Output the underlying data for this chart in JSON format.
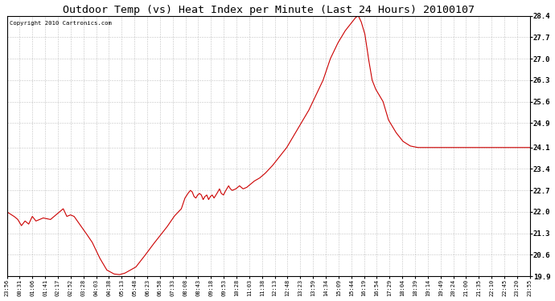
{
  "title": "Outdoor Temp (vs) Heat Index per Minute (Last 24 Hours) 20100107",
  "copyright": "Copyright 2010 Cartronics.com",
  "line_color": "#cc0000",
  "bg_color": "#ffffff",
  "grid_color": "#aaaaaa",
  "ylim": [
    19.9,
    28.4
  ],
  "yticks": [
    19.9,
    20.6,
    21.3,
    22.0,
    22.7,
    23.4,
    24.1,
    24.9,
    25.6,
    26.3,
    27.0,
    27.7,
    28.4
  ],
  "xtick_labels": [
    "23:56",
    "00:31",
    "01:06",
    "01:41",
    "02:17",
    "02:52",
    "03:28",
    "04:03",
    "04:38",
    "05:13",
    "05:48",
    "06:23",
    "06:58",
    "07:33",
    "08:08",
    "08:43",
    "09:18",
    "09:53",
    "10:28",
    "11:03",
    "11:38",
    "12:13",
    "12:48",
    "13:23",
    "13:59",
    "14:34",
    "15:09",
    "15:44",
    "16:19",
    "16:54",
    "17:29",
    "18:04",
    "18:39",
    "19:14",
    "19:49",
    "20:24",
    "21:00",
    "21:35",
    "22:10",
    "22:45",
    "23:20",
    "23:55"
  ],
  "keypoints": [
    [
      0,
      22.0
    ],
    [
      20,
      21.85
    ],
    [
      30,
      21.75
    ],
    [
      40,
      21.55
    ],
    [
      50,
      21.7
    ],
    [
      60,
      21.6
    ],
    [
      70,
      21.85
    ],
    [
      80,
      21.7
    ],
    [
      100,
      21.8
    ],
    [
      120,
      21.75
    ],
    [
      140,
      21.95
    ],
    [
      155,
      22.1
    ],
    [
      165,
      21.85
    ],
    [
      175,
      21.9
    ],
    [
      185,
      21.85
    ],
    [
      200,
      21.6
    ],
    [
      215,
      21.35
    ],
    [
      235,
      21.0
    ],
    [
      255,
      20.5
    ],
    [
      275,
      20.1
    ],
    [
      295,
      19.97
    ],
    [
      310,
      19.95
    ],
    [
      325,
      20.0
    ],
    [
      340,
      20.1
    ],
    [
      355,
      20.2
    ],
    [
      375,
      20.5
    ],
    [
      400,
      20.9
    ],
    [
      420,
      21.2
    ],
    [
      440,
      21.5
    ],
    [
      460,
      21.85
    ],
    [
      480,
      22.1
    ],
    [
      490,
      22.45
    ],
    [
      498,
      22.6
    ],
    [
      505,
      22.7
    ],
    [
      510,
      22.65
    ],
    [
      515,
      22.5
    ],
    [
      520,
      22.45
    ],
    [
      525,
      22.55
    ],
    [
      530,
      22.6
    ],
    [
      535,
      22.55
    ],
    [
      540,
      22.4
    ],
    [
      545,
      22.5
    ],
    [
      550,
      22.55
    ],
    [
      555,
      22.4
    ],
    [
      560,
      22.5
    ],
    [
      565,
      22.55
    ],
    [
      570,
      22.45
    ],
    [
      578,
      22.6
    ],
    [
      585,
      22.75
    ],
    [
      590,
      22.6
    ],
    [
      596,
      22.55
    ],
    [
      600,
      22.65
    ],
    [
      605,
      22.75
    ],
    [
      610,
      22.85
    ],
    [
      615,
      22.75
    ],
    [
      620,
      22.7
    ],
    [
      630,
      22.75
    ],
    [
      640,
      22.85
    ],
    [
      650,
      22.75
    ],
    [
      660,
      22.8
    ],
    [
      670,
      22.9
    ],
    [
      680,
      23.0
    ],
    [
      695,
      23.1
    ],
    [
      710,
      23.25
    ],
    [
      730,
      23.5
    ],
    [
      750,
      23.8
    ],
    [
      770,
      24.1
    ],
    [
      790,
      24.5
    ],
    [
      810,
      24.9
    ],
    [
      830,
      25.3
    ],
    [
      850,
      25.8
    ],
    [
      870,
      26.3
    ],
    [
      890,
      27.0
    ],
    [
      910,
      27.5
    ],
    [
      930,
      27.9
    ],
    [
      950,
      28.2
    ],
    [
      960,
      28.35
    ],
    [
      967,
      28.4
    ],
    [
      975,
      28.2
    ],
    [
      985,
      27.8
    ],
    [
      995,
      27.0
    ],
    [
      1005,
      26.3
    ],
    [
      1015,
      26.0
    ],
    [
      1025,
      25.8
    ],
    [
      1035,
      25.6
    ],
    [
      1050,
      25.0
    ],
    [
      1070,
      24.6
    ],
    [
      1090,
      24.3
    ],
    [
      1110,
      24.15
    ],
    [
      1130,
      24.1
    ],
    [
      1150,
      24.1
    ],
    [
      1200,
      24.1
    ],
    [
      1300,
      24.1
    ],
    [
      1400,
      24.1
    ],
    [
      1439,
      24.1
    ]
  ]
}
